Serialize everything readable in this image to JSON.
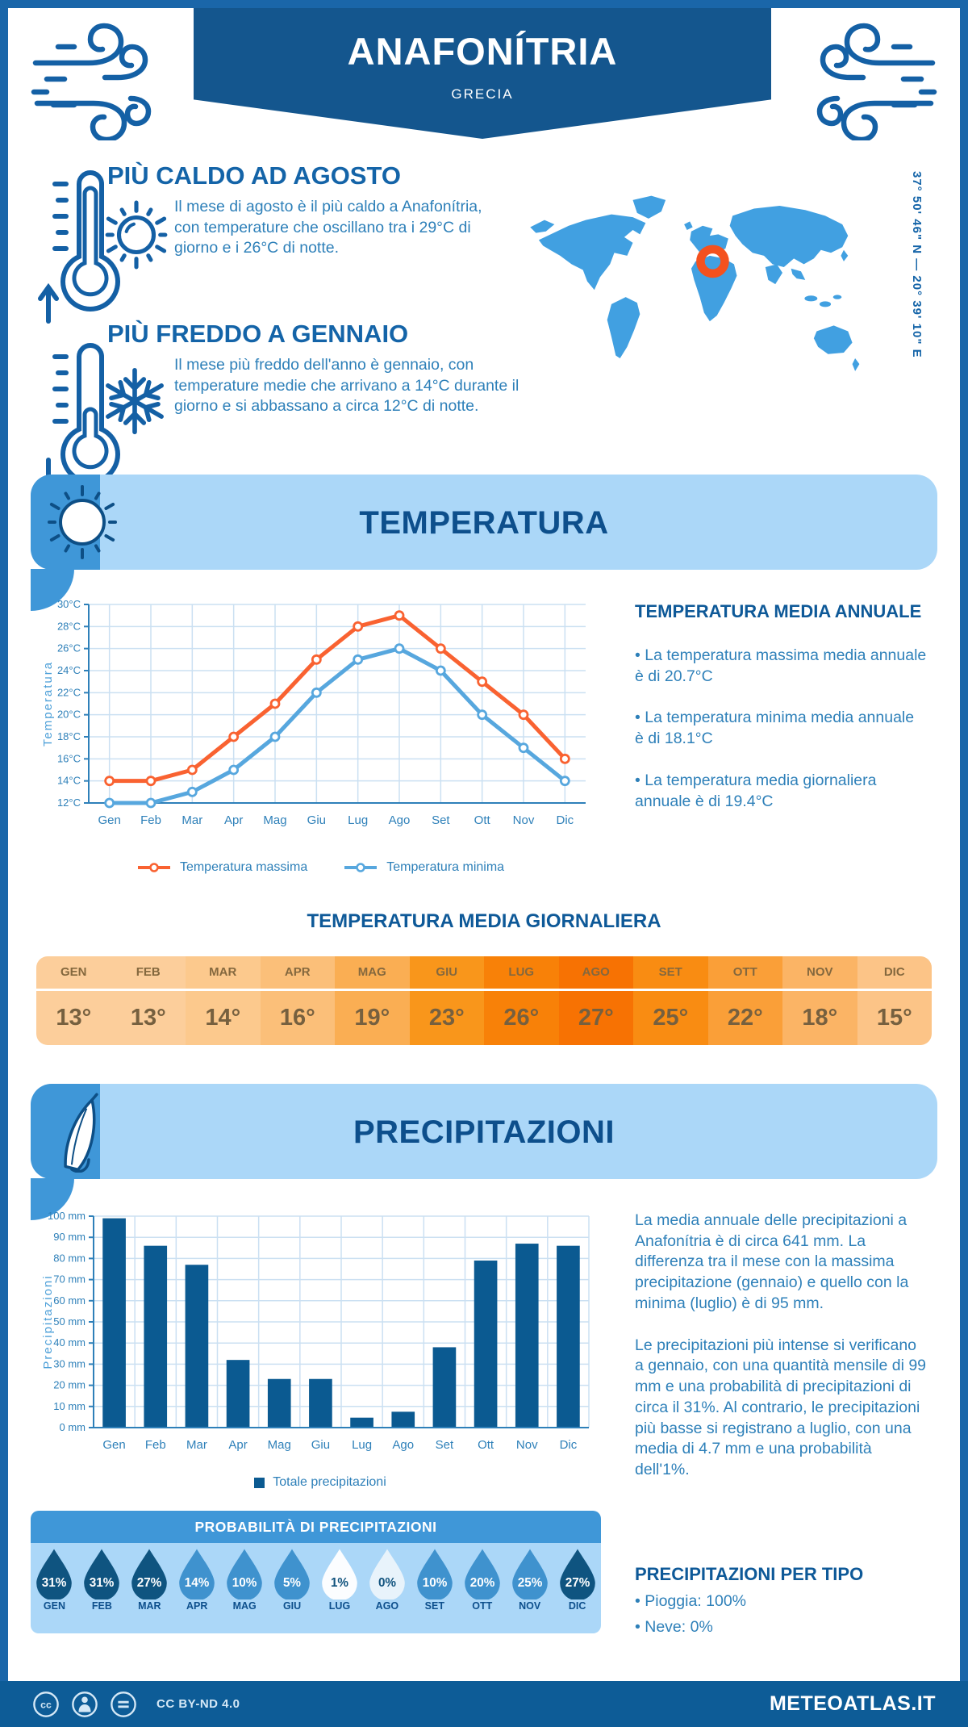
{
  "header": {
    "title": "ANAFONÍTRIA",
    "subtitle": "GRECIA"
  },
  "location": {
    "coordinates": "37° 50' 46\" N — 20° 39' 10\" E"
  },
  "highlights": {
    "hot": {
      "title": "PIÙ CALDO AD AGOSTO",
      "text": "Il mese di agosto è il più caldo a Anafonítria, con temperature che oscillano tra i 29°C di giorno e i 26°C di notte."
    },
    "cold": {
      "title": "PIÙ FREDDO A GENNAIO",
      "text": "Il mese più freddo dell'anno è gennaio, con temperature medie che arrivano a 14°C durante il giorno e si abbassano a circa 12°C di notte."
    }
  },
  "temperature": {
    "banner_title": "TEMPERATURA",
    "annual": {
      "title": "TEMPERATURA MEDIA ANNUALE",
      "bullets": [
        "• La temperatura massima media annuale è di 20.7°C",
        "• La temperatura minima media annuale è di 18.1°C",
        "• La temperatura media giornaliera annuale è di 19.4°C"
      ]
    },
    "daily_table": {
      "title": "TEMPERATURA MEDIA GIORNALIERA",
      "months": [
        "GEN",
        "FEB",
        "MAR",
        "APR",
        "MAG",
        "GIU",
        "LUG",
        "AGO",
        "SET",
        "OTT",
        "NOV",
        "DIC"
      ],
      "values": [
        "13°",
        "13°",
        "14°",
        "16°",
        "19°",
        "23°",
        "26°",
        "27°",
        "25°",
        "22°",
        "18°",
        "15°"
      ],
      "cell_colors": [
        "#FCCE9B",
        "#FCCE9B",
        "#FCC98D",
        "#FBBF79",
        "#FAAE53",
        "#F9961B",
        "#F88108",
        "#F77203",
        "#F98C12",
        "#FA9F38",
        "#FBB465",
        "#FCC487"
      ]
    }
  },
  "precipitation": {
    "banner_title": "PRECIPITAZIONI",
    "paragraphs": [
      "La media annuale delle precipitazioni a Anafonítria è di circa 641 mm. La differenza tra il mese con la massima precipitazione (gennaio) e quello con la minima (luglio) è di 95 mm.",
      "Le precipitazioni più intense si verificano a gennaio, con una quantità mensile di 99 mm e una probabilità di precipitazioni di circa il 31%. Al contrario, le precipitazioni più basse si registrano a luglio, con una media di 4.7 mm e una probabilità dell'1%."
    ],
    "probability": {
      "title": "PROBABILITÀ DI PRECIPITAZIONI",
      "months": [
        "GEN",
        "FEB",
        "MAR",
        "APR",
        "MAG",
        "GIU",
        "LUG",
        "AGO",
        "SET",
        "OTT",
        "NOV",
        "DIC"
      ],
      "values": [
        "31%",
        "31%",
        "27%",
        "14%",
        "10%",
        "5%",
        "1%",
        "0%",
        "10%",
        "20%",
        "25%",
        "27%"
      ],
      "drop_colors": [
        "#0F5480",
        "#0F5480",
        "#0F5480",
        "#3F92CE",
        "#3F92CE",
        "#3F92CE",
        "#FBFDFF",
        "#E8F3FB",
        "#3F92CE",
        "#3F92CE",
        "#3F92CE",
        "#0F5480"
      ],
      "text_colors": [
        "#ffffff",
        "#ffffff",
        "#ffffff",
        "#ffffff",
        "#ffffff",
        "#ffffff",
        "#11537E",
        "#11537E",
        "#ffffff",
        "#ffffff",
        "#ffffff",
        "#ffffff"
      ]
    },
    "by_type": {
      "title": "PRECIPITAZIONI PER TIPO",
      "items": [
        "• Pioggia: 100%",
        "• Neve: 0%"
      ]
    }
  },
  "chart_data": [
    {
      "type": "line",
      "title": "Temperatura media mensile",
      "categories": [
        "Gen",
        "Feb",
        "Mar",
        "Apr",
        "Mag",
        "Giu",
        "Lug",
        "Ago",
        "Set",
        "Ott",
        "Nov",
        "Dic"
      ],
      "series": [
        {
          "name": "Temperatura massima",
          "color": "#F96231",
          "values": [
            14,
            14,
            15,
            18,
            21,
            25,
            28,
            29,
            26,
            23,
            20,
            16
          ]
        },
        {
          "name": "Temperatura minima",
          "color": "#57A7DE",
          "values": [
            12,
            12,
            13,
            15,
            18,
            22,
            25,
            26,
            24,
            20,
            17,
            14
          ]
        }
      ],
      "xlabel": "",
      "ylabel": "Temperatura",
      "ylim": [
        12,
        30
      ],
      "ytick_step": 2,
      "ytick_suffix": "°C",
      "grid": true,
      "legend_position": "bottom"
    },
    {
      "type": "bar",
      "title": "Totale precipitazioni mensili",
      "categories": [
        "Gen",
        "Feb",
        "Mar",
        "Apr",
        "Mag",
        "Giu",
        "Lug",
        "Ago",
        "Set",
        "Ott",
        "Nov",
        "Dic"
      ],
      "values": [
        99,
        86,
        77,
        32,
        23,
        23,
        4.7,
        7.5,
        38,
        79,
        87,
        86
      ],
      "color": "#0B5A91",
      "xlabel": "",
      "ylabel": "Precipitazioni",
      "ylim": [
        0,
        100
      ],
      "ytick_step": 10,
      "ytick_suffix": " mm",
      "grid": true,
      "legend": "Totale precipitazioni",
      "legend_position": "bottom"
    }
  ],
  "footer": {
    "license": "CC BY-ND 4.0",
    "site": "METEOATLAS.IT"
  }
}
